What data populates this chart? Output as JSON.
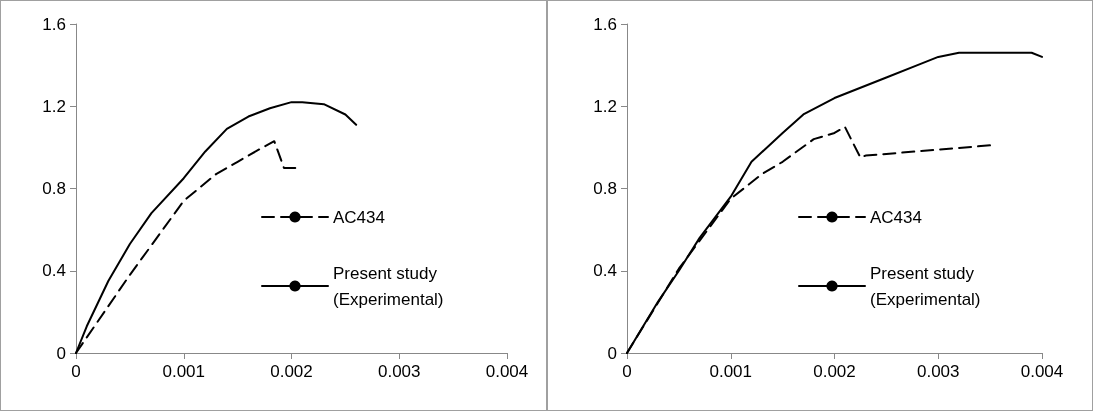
{
  "chart_data": [
    {
      "type": "line",
      "marker": "none",
      "legend": "right",
      "grid": false,
      "xlim": [
        0,
        0.004
      ],
      "xticks": [
        0,
        0.001,
        0.002,
        0.003,
        0.004
      ],
      "ylim": [
        0,
        1.6
      ],
      "yticks": [
        0,
        0.4,
        0.8,
        1.2,
        1.6
      ],
      "series": [
        {
          "name": "AC434",
          "color": "#000000",
          "line_style": "dashed",
          "x": [
            0,
            0.0005,
            0.001,
            0.0013,
            0.0015,
            0.0017,
            0.00184,
            0.00193,
            0.00205
          ],
          "values": [
            0,
            0.38,
            0.74,
            0.87,
            0.93,
            0.99,
            1.03,
            0.9,
            0.9
          ]
        },
        {
          "name": "Present study (Experimental)",
          "color": "#000000",
          "line_style": "solid",
          "x": [
            0,
            0.0001,
            0.0003,
            0.0005,
            0.0007,
            0.001,
            0.0012,
            0.0014,
            0.0016,
            0.0018,
            0.002,
            0.0021,
            0.0023,
            0.0025,
            0.0026
          ],
          "values": [
            0,
            0.13,
            0.35,
            0.53,
            0.68,
            0.85,
            0.98,
            1.09,
            1.15,
            1.19,
            1.22,
            1.22,
            1.21,
            1.16,
            1.11
          ]
        }
      ]
    },
    {
      "type": "line",
      "marker": "none",
      "legend": "right",
      "grid": false,
      "xlim": [
        0,
        0.004
      ],
      "xticks": [
        0,
        0.001,
        0.002,
        0.003,
        0.004
      ],
      "ylim": [
        0,
        1.6
      ],
      "yticks": [
        0,
        0.4,
        0.8,
        1.2,
        1.6
      ],
      "series": [
        {
          "name": "AC434",
          "color": "#000000",
          "line_style": "dashed",
          "x": [
            0,
            0.0005,
            0.001,
            0.0013,
            0.0015,
            0.0018,
            0.002,
            0.0021,
            0.00225,
            0.0023,
            0.0035
          ],
          "values": [
            0,
            0.41,
            0.75,
            0.87,
            0.93,
            1.04,
            1.07,
            1.1,
            0.95,
            0.96,
            1.01
          ]
        },
        {
          "name": "Present study (Experimental)",
          "color": "#000000",
          "line_style": "solid",
          "x": [
            0,
            0.0003,
            0.0005,
            0.0007,
            0.001,
            0.0012,
            0.0015,
            0.0017,
            0.002,
            0.0025,
            0.0028,
            0.003,
            0.0032,
            0.0039,
            0.004
          ],
          "values": [
            0,
            0.25,
            0.4,
            0.56,
            0.76,
            0.93,
            1.07,
            1.16,
            1.24,
            1.34,
            1.4,
            1.44,
            1.46,
            1.46,
            1.44
          ]
        }
      ]
    }
  ]
}
